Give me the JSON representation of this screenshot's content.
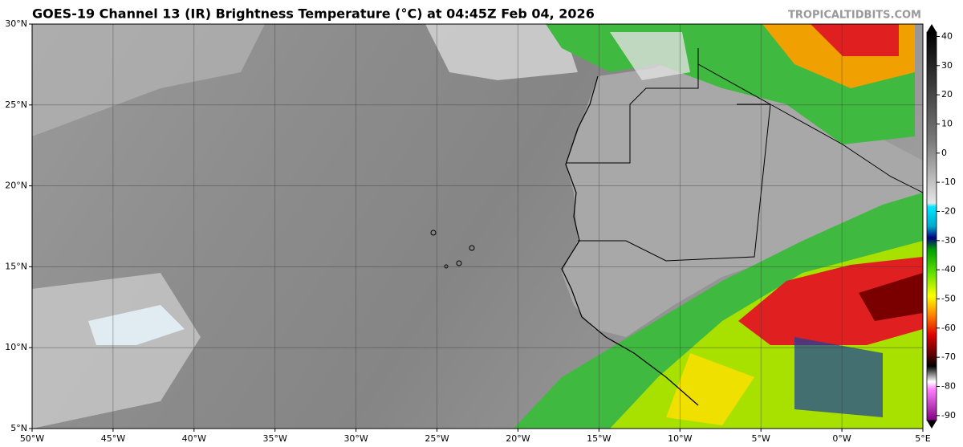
{
  "title": "GOES-19 Channel 13 (IR) Brightness Temperature (°C) at 04:45Z Feb 04, 2026",
  "watermark": "TROPICALTIDBITS.COM",
  "map": {
    "lonlim": [
      -50,
      5
    ],
    "latlim": [
      5,
      30
    ],
    "lon_ticks": [
      {
        "value": -50,
        "label": "50°W"
      },
      {
        "value": -45,
        "label": "45°W"
      },
      {
        "value": -40,
        "label": "40°W"
      },
      {
        "value": -35,
        "label": "35°W"
      },
      {
        "value": -30,
        "label": "30°W"
      },
      {
        "value": -25,
        "label": "25°W"
      },
      {
        "value": -20,
        "label": "20°W"
      },
      {
        "value": -15,
        "label": "15°W"
      },
      {
        "value": -10,
        "label": "10°W"
      },
      {
        "value": -5,
        "label": "5°W"
      },
      {
        "value": 0,
        "label": "0°W"
      },
      {
        "value": 5,
        "label": "5°E"
      }
    ],
    "lat_ticks": [
      {
        "value": 30,
        "label": "30°N"
      },
      {
        "value": 25,
        "label": "25°N"
      },
      {
        "value": 20,
        "label": "20°N"
      },
      {
        "value": 15,
        "label": "15°N"
      },
      {
        "value": 10,
        "label": "10°N"
      },
      {
        "value": 5,
        "label": "5°N"
      }
    ]
  },
  "colorbar": {
    "lim": [
      41.5,
      -91.7
    ],
    "ticks": [
      40,
      30,
      20,
      10,
      0,
      -10,
      -20,
      -30,
      -40,
      -50,
      -60,
      -70,
      -80,
      -90
    ]
  }
}
